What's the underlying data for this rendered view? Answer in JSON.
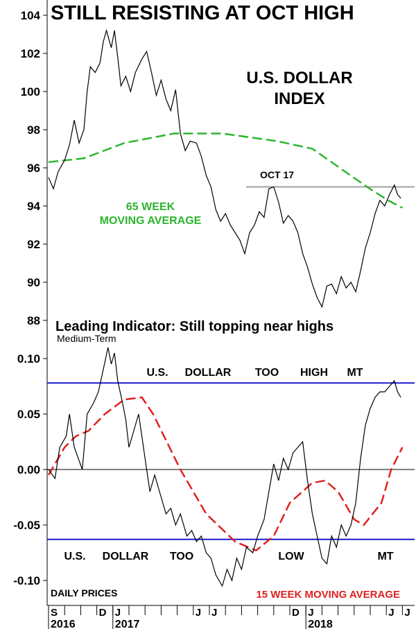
{
  "chart_data": [
    {
      "type": "line",
      "title": "STILL RESISTING AT OCT HIGH",
      "subtitle": "U.S. DOLLAR INDEX",
      "ylim": [
        88,
        104
      ],
      "yticks": [
        "104",
        "102",
        "100",
        "98",
        "96",
        "94",
        "92",
        "90",
        "88"
      ],
      "ytick_values": [
        104,
        102,
        100,
        98,
        96,
        94,
        92,
        90,
        88
      ],
      "x_unit": "months since start of Sep 2016",
      "annotations": {
        "resistance_label": "OCT 17",
        "resistance_value": 95.0,
        "ma_label_1": "65 WEEK",
        "ma_label_2": "MOVING AVERAGE"
      },
      "colors": {
        "price": "#000000",
        "ma": "#2db52d",
        "resistance": "#a0a0a0"
      },
      "series": [
        {
          "name": "U.S. Dollar Index",
          "points": [
            [
              0,
              95.5
            ],
            [
              0.3,
              94.9
            ],
            [
              0.6,
              95.8
            ],
            [
              1.0,
              96.4
            ],
            [
              1.3,
              97.2
            ],
            [
              1.6,
              98.5
            ],
            [
              1.9,
              97.3
            ],
            [
              2.2,
              98.0
            ],
            [
              2.4,
              100.0
            ],
            [
              2.6,
              101.3
            ],
            [
              2.9,
              101.0
            ],
            [
              3.2,
              101.5
            ],
            [
              3.4,
              102.6
            ],
            [
              3.6,
              103.2
            ],
            [
              3.9,
              102.3
            ],
            [
              4.1,
              103.2
            ],
            [
              4.3,
              101.8
            ],
            [
              4.5,
              100.3
            ],
            [
              4.8,
              100.8
            ],
            [
              5.1,
              100.0
            ],
            [
              5.4,
              101.0
            ],
            [
              5.8,
              101.7
            ],
            [
              6.1,
              102.1
            ],
            [
              6.4,
              101.0
            ],
            [
              6.7,
              99.8
            ],
            [
              7.0,
              100.6
            ],
            [
              7.3,
              99.6
            ],
            [
              7.6,
              99.0
            ],
            [
              7.9,
              100.1
            ],
            [
              8.2,
              97.8
            ],
            [
              8.5,
              96.9
            ],
            [
              8.8,
              97.4
            ],
            [
              9.2,
              97.3
            ],
            [
              9.5,
              96.6
            ],
            [
              9.8,
              95.6
            ],
            [
              10.1,
              95.0
            ],
            [
              10.4,
              93.8
            ],
            [
              10.7,
              93.2
            ],
            [
              11.0,
              93.6
            ],
            [
              11.3,
              93.0
            ],
            [
              11.6,
              92.6
            ],
            [
              11.9,
              92.2
            ],
            [
              12.2,
              91.5
            ],
            [
              12.5,
              92.6
            ],
            [
              12.8,
              93.0
            ],
            [
              13.1,
              93.7
            ],
            [
              13.4,
              93.4
            ],
            [
              13.7,
              94.9
            ],
            [
              14.0,
              95.0
            ],
            [
              14.3,
              94.2
            ],
            [
              14.6,
              93.1
            ],
            [
              14.9,
              93.5
            ],
            [
              15.2,
              93.2
            ],
            [
              15.5,
              92.6
            ],
            [
              15.8,
              91.5
            ],
            [
              16.1,
              90.8
            ],
            [
              16.4,
              89.9
            ],
            [
              16.7,
              89.2
            ],
            [
              17.0,
              88.7
            ],
            [
              17.3,
              89.8
            ],
            [
              17.6,
              89.9
            ],
            [
              17.9,
              89.4
            ],
            [
              18.2,
              90.3
            ],
            [
              18.5,
              89.7
            ],
            [
              18.8,
              90.0
            ],
            [
              19.1,
              89.5
            ],
            [
              19.4,
              90.6
            ],
            [
              19.7,
              91.8
            ],
            [
              20.0,
              92.6
            ],
            [
              20.3,
              93.6
            ],
            [
              20.6,
              94.3
            ],
            [
              20.9,
              94.0
            ],
            [
              21.2,
              94.6
            ],
            [
              21.5,
              95.1
            ],
            [
              21.7,
              94.6
            ],
            [
              21.9,
              94.4
            ]
          ]
        },
        {
          "name": "65 Week Moving Average",
          "points": [
            [
              0,
              96.3
            ],
            [
              2.2,
              96.5
            ],
            [
              4.7,
              97.3
            ],
            [
              7.8,
              97.8
            ],
            [
              10.8,
              97.8
            ],
            [
              14.2,
              97.4
            ],
            [
              16.4,
              97.0
            ],
            [
              18.1,
              96.0
            ],
            [
              19.8,
              95.0
            ],
            [
              21.1,
              94.3
            ],
            [
              22,
              93.9
            ]
          ]
        }
      ]
    },
    {
      "type": "line",
      "title": "Leading Indicator: Still topping near highs",
      "subtitle": "Medium-Term",
      "ylim": [
        -0.11,
        0.12
      ],
      "yticks": [
        "0.10",
        "0.05",
        "0.00",
        "-0.05",
        "-0.10"
      ],
      "ytick_values": [
        0.1,
        0.05,
        0.0,
        -0.05,
        -0.1
      ],
      "upper_band": 0.078,
      "lower_band": -0.063,
      "upper_labels": [
        "U.S.",
        "DOLLAR",
        "TOO",
        "HIGH",
        "MT"
      ],
      "lower_labels": [
        "U.S.",
        "DOLLAR",
        "TOO",
        "LOW",
        "MT"
      ],
      "notes": {
        "left": "DAILY PRICES",
        "right": "15 WEEK MOVING AVERAGE"
      },
      "colors": {
        "indicator": "#000000",
        "ma": "#e02020",
        "bands": "#1a1acc"
      },
      "series": [
        {
          "name": "Leading Indicator",
          "points": [
            [
              0,
              0.0
            ],
            [
              0.4,
              -0.008
            ],
            [
              0.7,
              0.02
            ],
            [
              1.1,
              0.03
            ],
            [
              1.3,
              0.05
            ],
            [
              1.6,
              0.02
            ],
            [
              2.1,
              0.0
            ],
            [
              2.4,
              0.05
            ],
            [
              2.8,
              0.06
            ],
            [
              3.1,
              0.07
            ],
            [
              3.4,
              0.09
            ],
            [
              3.7,
              0.11
            ],
            [
              3.9,
              0.095
            ],
            [
              4.1,
              0.105
            ],
            [
              4.3,
              0.08
            ],
            [
              4.6,
              0.06
            ],
            [
              4.8,
              0.045
            ],
            [
              5.0,
              0.02
            ],
            [
              5.3,
              0.035
            ],
            [
              5.6,
              0.05
            ],
            [
              5.8,
              0.03
            ],
            [
              6.0,
              0.01
            ],
            [
              6.3,
              -0.02
            ],
            [
              6.6,
              -0.005
            ],
            [
              6.9,
              -0.02
            ],
            [
              7.3,
              -0.04
            ],
            [
              7.6,
              -0.035
            ],
            [
              7.9,
              -0.05
            ],
            [
              8.2,
              -0.04
            ],
            [
              8.6,
              -0.06
            ],
            [
              8.9,
              -0.055
            ],
            [
              9.2,
              -0.065
            ],
            [
              9.5,
              -0.06
            ],
            [
              9.8,
              -0.075
            ],
            [
              10.1,
              -0.08
            ],
            [
              10.4,
              -0.095
            ],
            [
              10.8,
              -0.105
            ],
            [
              11.1,
              -0.09
            ],
            [
              11.4,
              -0.1
            ],
            [
              11.7,
              -0.08
            ],
            [
              12.0,
              -0.09
            ],
            [
              12.3,
              -0.07
            ],
            [
              12.7,
              -0.075
            ],
            [
              13.0,
              -0.06
            ],
            [
              13.4,
              -0.045
            ],
            [
              13.7,
              -0.02
            ],
            [
              14.0,
              0.005
            ],
            [
              14.3,
              -0.01
            ],
            [
              14.6,
              0.01
            ],
            [
              14.9,
              0.0
            ],
            [
              15.2,
              0.015
            ],
            [
              15.5,
              0.02
            ],
            [
              15.8,
              0.025
            ],
            [
              16.1,
              -0.01
            ],
            [
              16.4,
              -0.04
            ],
            [
              16.7,
              -0.06
            ],
            [
              17.0,
              -0.08
            ],
            [
              17.3,
              -0.085
            ],
            [
              17.6,
              -0.06
            ],
            [
              17.9,
              -0.07
            ],
            [
              18.2,
              -0.05
            ],
            [
              18.5,
              -0.06
            ],
            [
              18.8,
              -0.05
            ],
            [
              19.1,
              -0.03
            ],
            [
              19.4,
              0.01
            ],
            [
              19.7,
              0.04
            ],
            [
              20.0,
              0.055
            ],
            [
              20.3,
              0.065
            ],
            [
              20.6,
              0.07
            ],
            [
              20.9,
              0.07
            ],
            [
              21.2,
              0.075
            ],
            [
              21.5,
              0.08
            ],
            [
              21.7,
              0.07
            ],
            [
              21.9,
              0.065
            ]
          ]
        },
        {
          "name": "15 Week Moving Average",
          "points": [
            [
              0,
              -0.005
            ],
            [
              1,
              0.02
            ],
            [
              1.7,
              0.03
            ],
            [
              2.5,
              0.035
            ],
            [
              3.5,
              0.05
            ],
            [
              4.7,
              0.063
            ],
            [
              5.8,
              0.065
            ],
            [
              6.5,
              0.05
            ],
            [
              8.2,
              0.0
            ],
            [
              9.8,
              -0.04
            ],
            [
              11.6,
              -0.065
            ],
            [
              12.9,
              -0.073
            ],
            [
              14,
              -0.06
            ],
            [
              15,
              -0.03
            ],
            [
              16.4,
              -0.012
            ],
            [
              17.2,
              -0.01
            ],
            [
              18.0,
              -0.02
            ],
            [
              19.0,
              -0.045
            ],
            [
              19.6,
              -0.05
            ],
            [
              20.7,
              -0.03
            ],
            [
              21.3,
              0.0
            ],
            [
              22,
              0.02
            ]
          ]
        }
      ]
    }
  ],
  "x_axis": {
    "month_labels": [
      {
        "m": 0,
        "label": "S"
      },
      {
        "m": 3,
        "label": "D"
      },
      {
        "m": 4,
        "label": "J"
      },
      {
        "m": 9,
        "label": "J"
      },
      {
        "m": 10,
        "label": "J"
      },
      {
        "m": 15,
        "label": "D"
      },
      {
        "m": 16,
        "label": "J"
      },
      {
        "m": 21,
        "label": "J"
      },
      {
        "m": 22,
        "label": "J"
      }
    ],
    "years": [
      {
        "m": 0,
        "label": "2016"
      },
      {
        "m": 4,
        "label": "2017"
      },
      {
        "m": 16,
        "label": "2018"
      }
    ],
    "months_span": 22.5
  }
}
